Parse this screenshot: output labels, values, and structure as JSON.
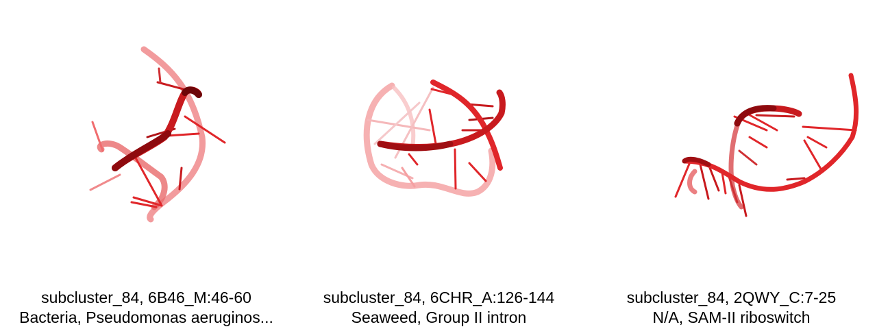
{
  "panels": [
    {
      "title": "subcluster_84, 6B46_M:46-60",
      "subtitle": "Bacteria, Pseudomonas aeruginos...",
      "structure_color": "#e8262a"
    },
    {
      "title": "subcluster_84, 6CHR_A:126-144",
      "subtitle": "Seaweed, Group II intron",
      "structure_color": "#e8262a"
    },
    {
      "title": "subcluster_84, 2QWY_C:7-25",
      "subtitle": "N/A, SAM-II riboswitch",
      "structure_color": "#e8262a"
    }
  ]
}
